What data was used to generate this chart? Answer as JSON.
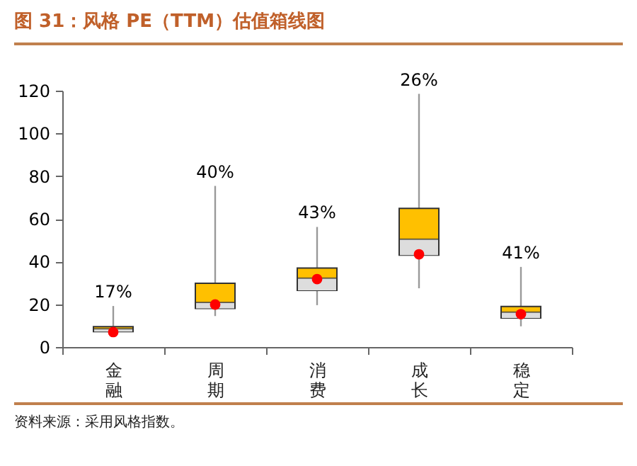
{
  "chart_data": {
    "type": "box",
    "title": "图 31：风格 PE（TTM）估值箱线图",
    "categories": [
      "金融",
      "周期",
      "消费",
      "成长",
      "稳定"
    ],
    "series": [
      {
        "color": "#ffc000",
        "boxes": [
          {
            "low": 6.5,
            "q1": 7.2,
            "median": 8.5,
            "q3": 9.5,
            "high": 19.2
          },
          {
            "low": 14.5,
            "q1": 18.1,
            "median": 20.9,
            "q3": 29.8,
            "high": 75.4
          },
          {
            "low": 19.6,
            "q1": 26.5,
            "median": 32.2,
            "q3": 37,
            "high": 56.2
          },
          {
            "low": 27.5,
            "q1": 43,
            "median": 50.5,
            "q3": 64.9,
            "high": 118.5
          },
          {
            "low": 9.7,
            "q1": 13.6,
            "median": 16.3,
            "q3": 19,
            "high": 37.5
          }
        ]
      },
      {
        "type": "scatter",
        "color": "#ff0000",
        "x": [
          "金融",
          "周期",
          "消费",
          "成长",
          "稳定"
        ],
        "values": [
          7,
          19.9,
          31.8,
          43.4,
          15.4
        ]
      }
    ],
    "ylim": [
      0,
      120
    ],
    "yticks": [
      0,
      20,
      40,
      60,
      80,
      100,
      120
    ],
    "grid": false,
    "annotations": [
      "17%",
      "40%",
      "43%",
      "26%",
      "41%",
      "资料来源：采用风格指数。"
    ]
  }
}
